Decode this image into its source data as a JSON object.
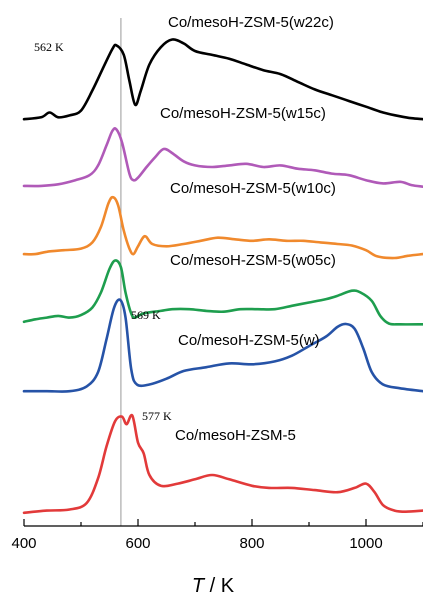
{
  "chart_data": {
    "type": "line",
    "xlabel_italic": "T",
    "xlabel_unit": " / K",
    "xlim": [
      400,
      1100
    ],
    "xticks": [
      400,
      600,
      800,
      1000
    ],
    "reference_line_x": 570,
    "series": [
      {
        "name": "Co/mesoH-ZSM-5(w22c)",
        "color": "#000000",
        "points": [
          [
            400,
            0.05
          ],
          [
            430,
            0.07
          ],
          [
            445,
            0.12
          ],
          [
            460,
            0.07
          ],
          [
            480,
            0.09
          ],
          [
            500,
            0.14
          ],
          [
            520,
            0.35
          ],
          [
            540,
            0.6
          ],
          [
            555,
            0.78
          ],
          [
            562,
            0.82
          ],
          [
            575,
            0.72
          ],
          [
            585,
            0.45
          ],
          [
            595,
            0.2
          ],
          [
            605,
            0.35
          ],
          [
            620,
            0.62
          ],
          [
            640,
            0.8
          ],
          [
            660,
            0.88
          ],
          [
            680,
            0.84
          ],
          [
            700,
            0.76
          ],
          [
            730,
            0.72
          ],
          [
            760,
            0.68
          ],
          [
            790,
            0.62
          ],
          [
            820,
            0.56
          ],
          [
            850,
            0.52
          ],
          [
            880,
            0.44
          ],
          [
            910,
            0.36
          ],
          [
            940,
            0.3
          ],
          [
            970,
            0.24
          ],
          [
            1000,
            0.18
          ],
          [
            1030,
            0.12
          ],
          [
            1060,
            0.08
          ],
          [
            1080,
            0.06
          ],
          [
            1100,
            0.05
          ]
        ]
      },
      {
        "name": "Co/mesoH-ZSM-5(w15c)",
        "color": "#b05ab8",
        "points": [
          [
            400,
            0.05
          ],
          [
            430,
            0.05
          ],
          [
            460,
            0.07
          ],
          [
            490,
            0.12
          ],
          [
            515,
            0.18
          ],
          [
            530,
            0.3
          ],
          [
            545,
            0.55
          ],
          [
            555,
            0.72
          ],
          [
            562,
            0.74
          ],
          [
            572,
            0.58
          ],
          [
            585,
            0.2
          ],
          [
            592,
            0.12
          ],
          [
            600,
            0.15
          ],
          [
            615,
            0.28
          ],
          [
            630,
            0.4
          ],
          [
            645,
            0.5
          ],
          [
            660,
            0.45
          ],
          [
            680,
            0.35
          ],
          [
            700,
            0.3
          ],
          [
            730,
            0.28
          ],
          [
            760,
            0.3
          ],
          [
            790,
            0.32
          ],
          [
            820,
            0.28
          ],
          [
            850,
            0.3
          ],
          [
            880,
            0.26
          ],
          [
            910,
            0.24
          ],
          [
            940,
            0.2
          ],
          [
            970,
            0.18
          ],
          [
            1000,
            0.12
          ],
          [
            1030,
            0.08
          ],
          [
            1060,
            0.1
          ],
          [
            1080,
            0.06
          ],
          [
            1100,
            0.04
          ]
        ]
      },
      {
        "name": "Co/mesoH-ZSM-5(w10c)",
        "color": "#f0892d",
        "points": [
          [
            400,
            0.05
          ],
          [
            420,
            0.05
          ],
          [
            440,
            0.08
          ],
          [
            470,
            0.1
          ],
          [
            500,
            0.12
          ],
          [
            520,
            0.2
          ],
          [
            535,
            0.4
          ],
          [
            548,
            0.7
          ],
          [
            556,
            0.78
          ],
          [
            565,
            0.68
          ],
          [
            575,
            0.35
          ],
          [
            585,
            0.12
          ],
          [
            592,
            0.05
          ],
          [
            600,
            0.15
          ],
          [
            612,
            0.28
          ],
          [
            625,
            0.18
          ],
          [
            650,
            0.15
          ],
          [
            680,
            0.18
          ],
          [
            710,
            0.22
          ],
          [
            740,
            0.26
          ],
          [
            770,
            0.24
          ],
          [
            800,
            0.22
          ],
          [
            830,
            0.24
          ],
          [
            860,
            0.22
          ],
          [
            890,
            0.22
          ],
          [
            920,
            0.2
          ],
          [
            950,
            0.18
          ],
          [
            975,
            0.16
          ],
          [
            1000,
            0.1
          ],
          [
            1020,
            0.02
          ],
          [
            1050,
            0.0
          ],
          [
            1075,
            0.03
          ],
          [
            1100,
            0.05
          ]
        ]
      },
      {
        "name": "Co/mesoH-ZSM-5(w05c)",
        "color": "#1e9e4e",
        "points": [
          [
            400,
            0.05
          ],
          [
            420,
            0.08
          ],
          [
            440,
            0.1
          ],
          [
            460,
            0.12
          ],
          [
            480,
            0.1
          ],
          [
            500,
            0.13
          ],
          [
            520,
            0.22
          ],
          [
            535,
            0.4
          ],
          [
            550,
            0.68
          ],
          [
            560,
            0.78
          ],
          [
            570,
            0.7
          ],
          [
            578,
            0.4
          ],
          [
            588,
            0.15
          ],
          [
            595,
            0.1
          ],
          [
            610,
            0.15
          ],
          [
            640,
            0.18
          ],
          [
            660,
            0.2
          ],
          [
            690,
            0.2
          ],
          [
            720,
            0.18
          ],
          [
            750,
            0.17
          ],
          [
            780,
            0.2
          ],
          [
            810,
            0.2
          ],
          [
            840,
            0.2
          ],
          [
            870,
            0.24
          ],
          [
            900,
            0.28
          ],
          [
            930,
            0.32
          ],
          [
            950,
            0.36
          ],
          [
            975,
            0.42
          ],
          [
            990,
            0.4
          ],
          [
            1010,
            0.3
          ],
          [
            1025,
            0.12
          ],
          [
            1040,
            0.03
          ],
          [
            1060,
            0.02
          ],
          [
            1100,
            0.02
          ]
        ]
      },
      {
        "name": "Co/mesoH-ZSM-5(w)",
        "color": "#2653a7",
        "points": [
          [
            400,
            0.05
          ],
          [
            440,
            0.05
          ],
          [
            480,
            0.05
          ],
          [
            510,
            0.1
          ],
          [
            530,
            0.25
          ],
          [
            545,
            0.6
          ],
          [
            558,
            0.92
          ],
          [
            569,
            1.0
          ],
          [
            578,
            0.82
          ],
          [
            588,
            0.28
          ],
          [
            598,
            0.12
          ],
          [
            620,
            0.12
          ],
          [
            650,
            0.18
          ],
          [
            680,
            0.26
          ],
          [
            720,
            0.3
          ],
          [
            760,
            0.34
          ],
          [
            800,
            0.33
          ],
          [
            840,
            0.36
          ],
          [
            870,
            0.42
          ],
          [
            900,
            0.52
          ],
          [
            930,
            0.62
          ],
          [
            950,
            0.72
          ],
          [
            965,
            0.75
          ],
          [
            980,
            0.7
          ],
          [
            995,
            0.5
          ],
          [
            1010,
            0.25
          ],
          [
            1030,
            0.12
          ],
          [
            1060,
            0.08
          ],
          [
            1100,
            0.05
          ]
        ]
      },
      {
        "name": "Co/mesoH-ZSM-5",
        "color": "#e23a3a",
        "points": [
          [
            400,
            0.03
          ],
          [
            440,
            0.05
          ],
          [
            480,
            0.06
          ],
          [
            510,
            0.12
          ],
          [
            530,
            0.35
          ],
          [
            545,
            0.65
          ],
          [
            560,
            0.88
          ],
          [
            572,
            0.92
          ],
          [
            580,
            0.85
          ],
          [
            590,
            0.93
          ],
          [
            600,
            0.68
          ],
          [
            610,
            0.58
          ],
          [
            620,
            0.38
          ],
          [
            640,
            0.28
          ],
          [
            670,
            0.3
          ],
          [
            700,
            0.34
          ],
          [
            730,
            0.38
          ],
          [
            760,
            0.34
          ],
          [
            800,
            0.28
          ],
          [
            830,
            0.26
          ],
          [
            870,
            0.26
          ],
          [
            910,
            0.24
          ],
          [
            950,
            0.22
          ],
          [
            980,
            0.26
          ],
          [
            1000,
            0.3
          ],
          [
            1015,
            0.22
          ],
          [
            1030,
            0.1
          ],
          [
            1050,
            0.05
          ],
          [
            1070,
            0.04
          ],
          [
            1100,
            0.05
          ]
        ]
      }
    ],
    "peak_labels": [
      {
        "text": "562 K",
        "x": 470,
        "series_index": 0
      },
      {
        "text": "569 K",
        "x": 625,
        "series_index": 4
      },
      {
        "text": "577 K",
        "x": 618,
        "series_index": 5
      }
    ]
  }
}
